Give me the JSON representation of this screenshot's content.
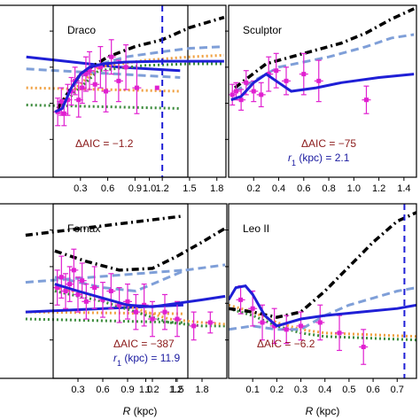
{
  "chart_data": [
    {
      "type": "line",
      "name": "",
      "xlim": [
        0.0,
        1.25
      ],
      "ylim": [
        0,
        1
      ],
      "xticks": [
        1.0
      ],
      "aic": "",
      "r1": "",
      "xlabel": "",
      "truncated": "left",
      "dashed_line_x": null,
      "model_curve": [
        [
          0.2,
          0.3
        ],
        [
          0.5,
          0.33
        ],
        [
          0.8,
          0.36
        ],
        [
          1.2,
          0.38
        ]
      ],
      "black_dash_dot": [],
      "light_blue_dashed": [
        [
          0.2,
          0.37
        ],
        [
          1.2,
          0.42
        ]
      ],
      "orange_dotted": [
        [
          0.2,
          0.48
        ],
        [
          1.2,
          0.5
        ]
      ],
      "green_dotted": [
        [
          0.2,
          0.58
        ],
        [
          1.2,
          0.6
        ]
      ],
      "points": [
        [
          1.05,
          0.48
        ]
      ]
    },
    {
      "type": "line",
      "name": "Draco",
      "xlim": [
        0.0,
        1.9
      ],
      "ylim": [
        0,
        1
      ],
      "xticks": [
        0.3,
        0.6,
        0.9,
        1.2,
        1.5,
        1.8
      ],
      "aic": "ΔAIC = −1.2",
      "r1": "",
      "xlabel": "",
      "dashed_line_x": 1.2,
      "model_curve": [
        [
          0.02,
          0.62
        ],
        [
          0.1,
          0.6
        ],
        [
          0.2,
          0.48
        ],
        [
          0.3,
          0.4
        ],
        [
          0.4,
          0.36
        ],
        [
          0.55,
          0.34
        ],
        [
          0.8,
          0.33
        ],
        [
          1.2,
          0.325
        ],
        [
          1.6,
          0.325
        ],
        [
          1.88,
          0.325
        ]
      ],
      "black_dash_dot": [
        [
          0.05,
          0.6
        ],
        [
          0.3,
          0.4
        ],
        [
          0.6,
          0.3
        ],
        [
          0.9,
          0.24
        ],
        [
          1.2,
          0.2
        ],
        [
          1.5,
          0.13
        ],
        [
          1.88,
          0.07
        ]
      ],
      "light_blue_dashed": [
        [
          0.05,
          0.58
        ],
        [
          0.4,
          0.36
        ],
        [
          0.8,
          0.3
        ],
        [
          1.2,
          0.27
        ],
        [
          1.5,
          0.25
        ],
        [
          1.88,
          0.24
        ]
      ],
      "orange_dotted": [
        [
          0.05,
          0.58
        ],
        [
          0.5,
          0.36
        ],
        [
          1.0,
          0.32
        ],
        [
          1.5,
          0.3
        ],
        [
          1.88,
          0.29
        ]
      ],
      "green_dotted": [
        [
          0.05,
          0.6
        ],
        [
          0.5,
          0.38
        ],
        [
          1.0,
          0.35
        ],
        [
          1.5,
          0.34
        ],
        [
          1.88,
          0.34
        ]
      ],
      "points": [
        [
          0.05,
          0.62,
          0.08
        ],
        [
          0.09,
          0.56,
          0.08
        ],
        [
          0.12,
          0.63,
          0.07
        ],
        [
          0.16,
          0.55,
          0.09
        ],
        [
          0.2,
          0.5,
          0.08
        ],
        [
          0.24,
          0.44,
          0.08
        ],
        [
          0.28,
          0.55,
          0.1
        ],
        [
          0.32,
          0.48,
          0.09
        ],
        [
          0.36,
          0.4,
          0.1
        ],
        [
          0.4,
          0.38,
          0.11
        ],
        [
          0.46,
          0.46,
          0.1
        ],
        [
          0.52,
          0.36,
          0.12
        ],
        [
          0.58,
          0.5,
          0.12
        ],
        [
          0.64,
          0.3,
          0.1
        ],
        [
          0.72,
          0.44,
          0.12
        ],
        [
          0.8,
          0.36,
          0.13
        ],
        [
          0.92,
          0.48,
          0.15
        ]
      ]
    },
    {
      "type": "line",
      "name": "Sculptor",
      "xlim": [
        0.0,
        1.5
      ],
      "ylim": [
        0,
        1
      ],
      "xticks": [
        0.2,
        0.4,
        0.6,
        0.8,
        1.0,
        1.2,
        1.4
      ],
      "aic": "ΔAIC = −75",
      "r1": "r1 (kpc) = 2.1",
      "xlabel": "",
      "dashed_line_x": null,
      "model_curve": [
        [
          0.02,
          0.55
        ],
        [
          0.1,
          0.53
        ],
        [
          0.2,
          0.45
        ],
        [
          0.3,
          0.4
        ],
        [
          0.4,
          0.45
        ],
        [
          0.5,
          0.5
        ],
        [
          0.7,
          0.48
        ],
        [
          0.9,
          0.45
        ],
        [
          1.2,
          0.42
        ],
        [
          1.48,
          0.4
        ]
      ],
      "black_dash_dot": [
        [
          0.05,
          0.48
        ],
        [
          0.3,
          0.34
        ],
        [
          0.6,
          0.28
        ],
        [
          0.9,
          0.22
        ],
        [
          1.1,
          0.16
        ],
        [
          1.3,
          0.08
        ],
        [
          1.48,
          0.02
        ]
      ],
      "light_blue_dashed": [
        [
          0.05,
          0.5
        ],
        [
          0.4,
          0.36
        ],
        [
          0.8,
          0.3
        ],
        [
          1.1,
          0.24
        ],
        [
          1.3,
          0.19
        ],
        [
          1.48,
          0.17
        ]
      ],
      "orange_dotted": [],
      "green_dotted": [],
      "points": [
        [
          0.03,
          0.52,
          0.06
        ],
        [
          0.06,
          0.5,
          0.05
        ],
        [
          0.1,
          0.55,
          0.06
        ],
        [
          0.14,
          0.45,
          0.07
        ],
        [
          0.2,
          0.5,
          0.06
        ],
        [
          0.26,
          0.52,
          0.07
        ],
        [
          0.32,
          0.4,
          0.1
        ],
        [
          0.38,
          0.38,
          0.1
        ],
        [
          0.46,
          0.44,
          0.08
        ],
        [
          0.6,
          0.4,
          0.12
        ],
        [
          0.72,
          0.44,
          0.12
        ],
        [
          1.1,
          0.55,
          0.08
        ]
      ]
    },
    {
      "type": "line",
      "name": "",
      "xlim": [
        0.0,
        1.28
      ],
      "ylim": [
        0,
        1
      ],
      "xticks": [
        1.0,
        1.2
      ],
      "aic": "",
      "r1": "",
      "xlabel": "",
      "truncated": "left",
      "dashed_line_x": null,
      "model_curve": [
        [
          0.2,
          0.62
        ],
        [
          1.25,
          0.58
        ]
      ],
      "black_dash_dot": [
        [
          0.2,
          0.18
        ],
        [
          1.25,
          0.07
        ]
      ],
      "light_blue_dashed": [
        [
          0.2,
          0.45
        ],
        [
          1.25,
          0.38
        ]
      ],
      "orange_dotted": [
        [
          0.2,
          0.62
        ],
        [
          1.25,
          0.63
        ]
      ],
      "green_dotted": [
        [
          0.2,
          0.66
        ],
        [
          1.25,
          0.68
        ]
      ],
      "points": []
    },
    {
      "type": "line",
      "name": "Fornax",
      "xlim": [
        0.0,
        2.1
      ],
      "ylim": [
        0,
        1
      ],
      "xticks": [
        0.3,
        0.6,
        0.9,
        1.2,
        1.5,
        1.8
      ],
      "aic": "ΔAIC = −387",
      "r1": "r1 (kpc) = 11.9",
      "xlabel": "R (kpc)",
      "dashed_line_x": null,
      "model_curve": [
        [
          0.02,
          0.46
        ],
        [
          0.3,
          0.5
        ],
        [
          0.6,
          0.54
        ],
        [
          0.9,
          0.58
        ],
        [
          1.2,
          0.59
        ],
        [
          1.5,
          0.57
        ],
        [
          1.8,
          0.55
        ],
        [
          2.08,
          0.53
        ]
      ],
      "black_dash_dot": [
        [
          0.02,
          0.27
        ],
        [
          0.4,
          0.33
        ],
        [
          0.8,
          0.38
        ],
        [
          1.2,
          0.37
        ],
        [
          1.5,
          0.3
        ],
        [
          1.8,
          0.22
        ],
        [
          2.08,
          0.14
        ]
      ],
      "light_blue_dashed": [
        [
          0.02,
          0.42
        ],
        [
          0.6,
          0.48
        ],
        [
          1.0,
          0.5
        ],
        [
          1.3,
          0.44
        ],
        [
          1.6,
          0.38
        ],
        [
          2.08,
          0.35
        ]
      ],
      "orange_dotted": [
        [
          0.02,
          0.48
        ],
        [
          0.6,
          0.54
        ],
        [
          1.0,
          0.6
        ],
        [
          1.4,
          0.66
        ],
        [
          1.8,
          0.68
        ],
        [
          2.08,
          0.69
        ]
      ],
      "green_dotted": [
        [
          0.02,
          0.5
        ],
        [
          0.6,
          0.56
        ],
        [
          1.0,
          0.62
        ],
        [
          1.4,
          0.68
        ],
        [
          1.8,
          0.7
        ],
        [
          2.08,
          0.7
        ]
      ],
      "points": [
        [
          0.05,
          0.48,
          0.1
        ],
        [
          0.1,
          0.42,
          0.12
        ],
        [
          0.15,
          0.5,
          0.1
        ],
        [
          0.2,
          0.46,
          0.1
        ],
        [
          0.25,
          0.38,
          0.12
        ],
        [
          0.3,
          0.52,
          0.1
        ],
        [
          0.35,
          0.44,
          0.1
        ],
        [
          0.4,
          0.56,
          0.1
        ],
        [
          0.5,
          0.48,
          0.12
        ],
        [
          0.6,
          0.55,
          0.1
        ],
        [
          0.7,
          0.5,
          0.1
        ],
        [
          0.8,
          0.58,
          0.1
        ],
        [
          0.9,
          0.56,
          0.1
        ],
        [
          1.0,
          0.62,
          0.1
        ],
        [
          1.1,
          0.58,
          0.12
        ],
        [
          1.2,
          0.66,
          0.1
        ],
        [
          1.35,
          0.62,
          0.1
        ],
        [
          1.5,
          0.66,
          0.1
        ],
        [
          1.7,
          0.7,
          0.08
        ],
        [
          1.9,
          0.68,
          0.06
        ]
      ]
    },
    {
      "type": "line",
      "name": "Leo II",
      "xlim": [
        0.0,
        0.78
      ],
      "ylim": [
        0,
        1
      ],
      "xticks": [
        0.1,
        0.2,
        0.3,
        0.4,
        0.5,
        0.6,
        0.7
      ],
      "aic": "ΔAIC = −6.2",
      "r1": "",
      "xlabel": "R (kpc)",
      "dashed_line_x": 0.73,
      "model_curve": [
        [
          0.0,
          0.55
        ],
        [
          0.03,
          0.48
        ],
        [
          0.07,
          0.47
        ],
        [
          0.1,
          0.52
        ],
        [
          0.15,
          0.64
        ],
        [
          0.2,
          0.7
        ],
        [
          0.3,
          0.66
        ],
        [
          0.4,
          0.64
        ],
        [
          0.55,
          0.62
        ],
        [
          0.7,
          0.6
        ],
        [
          0.78,
          0.58
        ]
      ],
      "black_dash_dot": [
        [
          0.0,
          0.6
        ],
        [
          0.1,
          0.62
        ],
        [
          0.2,
          0.65
        ],
        [
          0.3,
          0.62
        ],
        [
          0.4,
          0.5
        ],
        [
          0.5,
          0.36
        ],
        [
          0.6,
          0.22
        ],
        [
          0.7,
          0.1
        ],
        [
          0.78,
          0.05
        ]
      ],
      "light_blue_dashed": [
        [
          0.0,
          0.72
        ],
        [
          0.1,
          0.7
        ],
        [
          0.2,
          0.72
        ],
        [
          0.3,
          0.72
        ],
        [
          0.4,
          0.64
        ],
        [
          0.5,
          0.58
        ],
        [
          0.6,
          0.54
        ],
        [
          0.7,
          0.5
        ],
        [
          0.78,
          0.48
        ]
      ],
      "orange_dotted": [
        [
          0.0,
          0.58
        ],
        [
          0.1,
          0.62
        ],
        [
          0.2,
          0.68
        ],
        [
          0.3,
          0.72
        ],
        [
          0.4,
          0.74
        ],
        [
          0.78,
          0.76
        ]
      ],
      "green_dotted": [
        [
          0.0,
          0.6
        ],
        [
          0.1,
          0.64
        ],
        [
          0.2,
          0.7
        ],
        [
          0.3,
          0.74
        ],
        [
          0.4,
          0.76
        ],
        [
          0.78,
          0.78
        ]
      ],
      "points": [
        [
          0.05,
          0.55,
          0.08
        ],
        [
          0.1,
          0.6,
          0.1
        ],
        [
          0.14,
          0.68,
          0.1
        ],
        [
          0.19,
          0.7,
          0.1
        ],
        [
          0.24,
          0.72,
          0.08
        ],
        [
          0.3,
          0.7,
          0.08
        ],
        [
          0.38,
          0.68,
          0.1
        ],
        [
          0.46,
          0.74,
          0.1
        ],
        [
          0.56,
          0.82,
          0.1
        ]
      ]
    }
  ]
}
